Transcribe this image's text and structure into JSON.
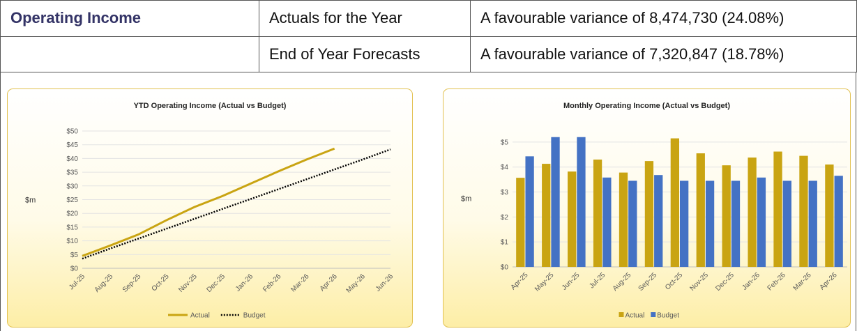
{
  "table": {
    "rows": [
      [
        "Operating Income",
        "Actuals for the Year",
        "A favourable variance of 8,474,730 (24.08%)"
      ],
      [
        "End of Year Forecasts",
        "A favourable variance of 7,320,847 (18.78%)"
      ]
    ]
  },
  "chart_data": [
    {
      "type": "line",
      "title": "YTD Operating Income (Actual vs Budget)",
      "y_label": "$m",
      "categories": [
        "Jul-25",
        "Aug-25",
        "Sep-25",
        "Oct-25",
        "Nov-25",
        "Dec-25",
        "Jan-26",
        "Feb-26",
        "Mar-26",
        "Apr-26",
        "May-26",
        "Jun-26"
      ],
      "series": [
        {
          "name": "Actual",
          "color": "#c9a412",
          "values": [
            4.5,
            8.3,
            12.3,
            17.5,
            22.3,
            26.3,
            30.8,
            35.3,
            39.6,
            43.6,
            null,
            null
          ]
        },
        {
          "name": "Budget",
          "color": "#000000",
          "values": [
            3.5,
            7.2,
            10.8,
            14.4,
            18.0,
            21.6,
            25.2,
            28.8,
            32.4,
            36.0,
            39.6,
            43.3
          ]
        }
      ],
      "ylim": [
        0,
        50
      ],
      "yticks": [
        {
          "value": 0,
          "label": "$0"
        },
        {
          "value": 5,
          "label": "$5"
        },
        {
          "value": 10,
          "label": "$10"
        },
        {
          "value": 15,
          "label": "$15"
        },
        {
          "value": 20,
          "label": "$20"
        },
        {
          "value": 25,
          "label": "$25"
        },
        {
          "value": 30,
          "label": "$30"
        },
        {
          "value": 35,
          "label": "$35"
        },
        {
          "value": 40,
          "label": "$40"
        },
        {
          "value": 45,
          "label": "$45"
        },
        {
          "value": 50,
          "label": "$50"
        }
      ],
      "grid": true,
      "legend": "bottom"
    },
    {
      "type": "bar",
      "title": "Monthly Operating Income (Actual vs Budget)",
      "y_label": "$m",
      "categories": [
        "Apr-25",
        "May-25",
        "Jun-25",
        "Jul-25",
        "Aug-25",
        "Sep-25",
        "Oct-25",
        "Nov-25",
        "Dec-25",
        "Jan-26",
        "Feb-26",
        "Mar-26",
        "Apr-26"
      ],
      "series": [
        {
          "name": "Actual",
          "color": "#c9a412",
          "values": [
            3.57,
            4.13,
            3.82,
            4.3,
            3.78,
            4.24,
            5.15,
            4.55,
            4.07,
            4.38,
            4.62,
            4.45,
            4.1
          ]
        },
        {
          "name": "Budget",
          "color": "#4472c4",
          "values": [
            4.43,
            5.2,
            5.2,
            3.58,
            3.45,
            3.68,
            3.45,
            3.45,
            3.45,
            3.58,
            3.45,
            3.45,
            3.65
          ]
        }
      ],
      "ylim": [
        0,
        5.5
      ],
      "yticks": [
        {
          "value": 0,
          "label": "$0"
        },
        {
          "value": 1,
          "label": "$1"
        },
        {
          "value": 2,
          "label": "$2"
        },
        {
          "value": 3,
          "label": "$3"
        },
        {
          "value": 4,
          "label": "$4"
        },
        {
          "value": 5,
          "label": "$5"
        }
      ],
      "grid": true,
      "legend": "bottom"
    }
  ]
}
